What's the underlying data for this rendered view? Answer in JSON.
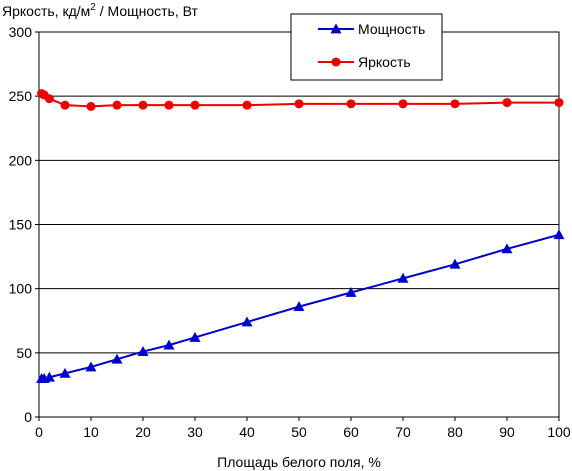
{
  "chart_data": {
    "type": "line",
    "ylabel_prefix": "Яркость, кд/м",
    "ylabel_sup": "2",
    "ylabel_suffix": " / Мощность, Вт",
    "xlabel": "Площадь белого поля, %",
    "xlim": [
      0,
      100
    ],
    "ylim": [
      0,
      300
    ],
    "xticks": [
      0,
      10,
      20,
      30,
      40,
      50,
      60,
      70,
      80,
      90,
      100
    ],
    "yticks": [
      0,
      50,
      100,
      150,
      200,
      250,
      300
    ],
    "grid": "horizontal",
    "legend_position": "top-right",
    "series": [
      {
        "name": "Мощность",
        "color": "#0000cc",
        "marker": "triangle",
        "x": [
          0.5,
          1,
          2,
          5,
          10,
          15,
          20,
          25,
          30,
          40,
          50,
          60,
          70,
          80,
          90,
          100
        ],
        "y": [
          30,
          30,
          31,
          34,
          39,
          45,
          51,
          56,
          62,
          74,
          86,
          97,
          108,
          119,
          131,
          142
        ]
      },
      {
        "name": "Яркость",
        "color": "#ee0000",
        "marker": "circle",
        "x": [
          0.5,
          1,
          2,
          5,
          10,
          15,
          20,
          25,
          30,
          40,
          50,
          60,
          70,
          80,
          90,
          100
        ],
        "y": [
          252,
          251,
          248,
          243,
          242,
          243,
          243,
          243,
          243,
          243,
          244,
          244,
          244,
          244,
          245,
          245
        ]
      }
    ]
  }
}
